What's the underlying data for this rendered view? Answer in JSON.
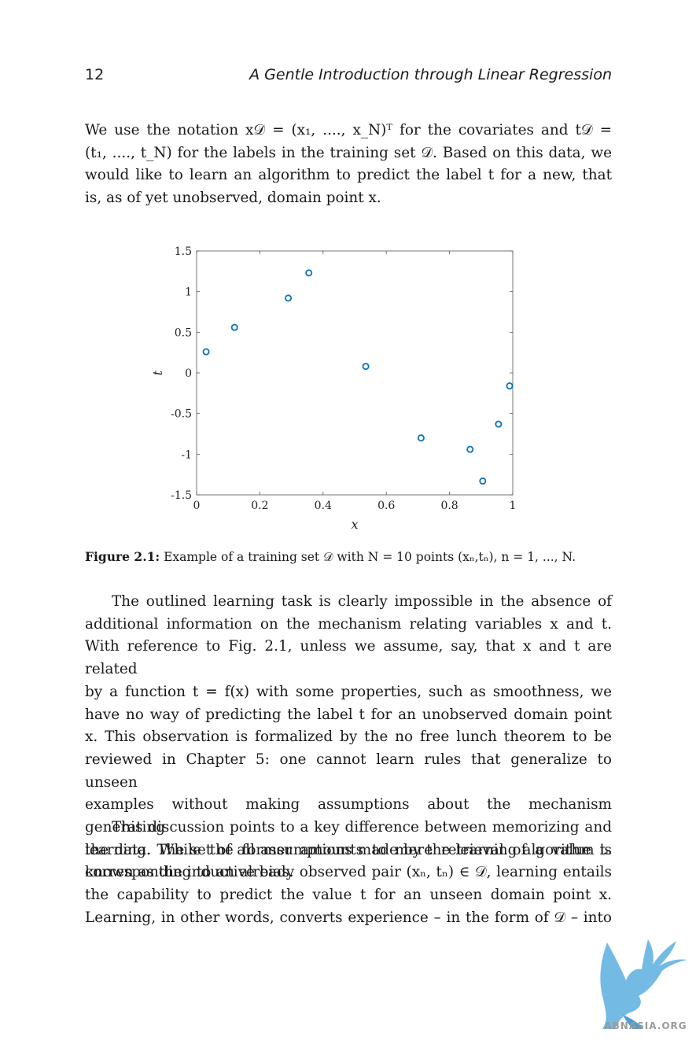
{
  "header": {
    "page_number": "12",
    "running_title": "A Gentle Introduction through Linear Regression"
  },
  "para1": {
    "lines": [
      "We use the notation x𝒟 = (x₁, ...., x_N)ᵀ for the covariates and t𝒟 =",
      "(t₁, ...., t_N) for the labels in the training set 𝒟. Based on this data, we",
      "would like to learn an algorithm to predict the label t for a new, that",
      "is, as of yet unobserved, domain point x."
    ]
  },
  "figure": {
    "caption_label": "Figure 2.1:",
    "caption_text": "Example of a training set 𝒟 with N = 10 points (xₙ,tₙ), n = 1, ..., N."
  },
  "chart_data": {
    "type": "scatter",
    "xlabel": "x",
    "ylabel": "t",
    "xlim": [
      0,
      1
    ],
    "ylim": [
      -1.5,
      1.5
    ],
    "xticks": [
      "0",
      "0.2",
      "0.4",
      "0.6",
      "0.8",
      "1"
    ],
    "yticks": [
      "1.5",
      "1",
      "0.5",
      "0",
      "-0.5",
      "-1",
      "-1.5"
    ],
    "grid": false,
    "marker": "open-circle",
    "marker_color": "#0a72bd",
    "x": [
      0.03,
      0.12,
      0.29,
      0.355,
      0.535,
      0.71,
      0.865,
      0.905,
      0.955,
      0.99
    ],
    "y": [
      0.26,
      0.56,
      0.92,
      1.23,
      0.08,
      -0.8,
      -0.94,
      -1.33,
      -0.63,
      -0.16
    ]
  },
  "para2": {
    "lines": [
      "The outlined learning task is clearly impossible in the absence of",
      "additional information on the mechanism relating variables x and t.",
      "With reference to Fig. 2.1, unless we assume, say, that x and t are related",
      "by a function t = f(x) with some properties, such as smoothness, we",
      "have no way of predicting the label t for an unobserved domain point",
      "x. This observation is formalized by the no free lunch theorem to be",
      "reviewed in Chapter 5: one cannot learn rules that generalize to unseen",
      "examples without making assumptions about the mechanism generating",
      "the data. The set of all assumptions made by the learning algorithm is",
      "known as the inductive bias."
    ]
  },
  "para3": {
    "lines": [
      "This discussion points to a key difference between memorizing and",
      "learning. While the former amounts to mere retrieval of a value tₙ",
      "corresponding to an already observed pair (xₙ, tₙ) ∈ 𝒟, learning entails",
      "the capability to predict the value t for an unseen domain point x.",
      "Learning, in other words, converts experience – in the form of 𝒟 – into"
    ]
  },
  "watermark": {
    "text": "ABNASIA.ORG",
    "icon": "griffin-logo-icon",
    "color": "#5aaee0"
  }
}
